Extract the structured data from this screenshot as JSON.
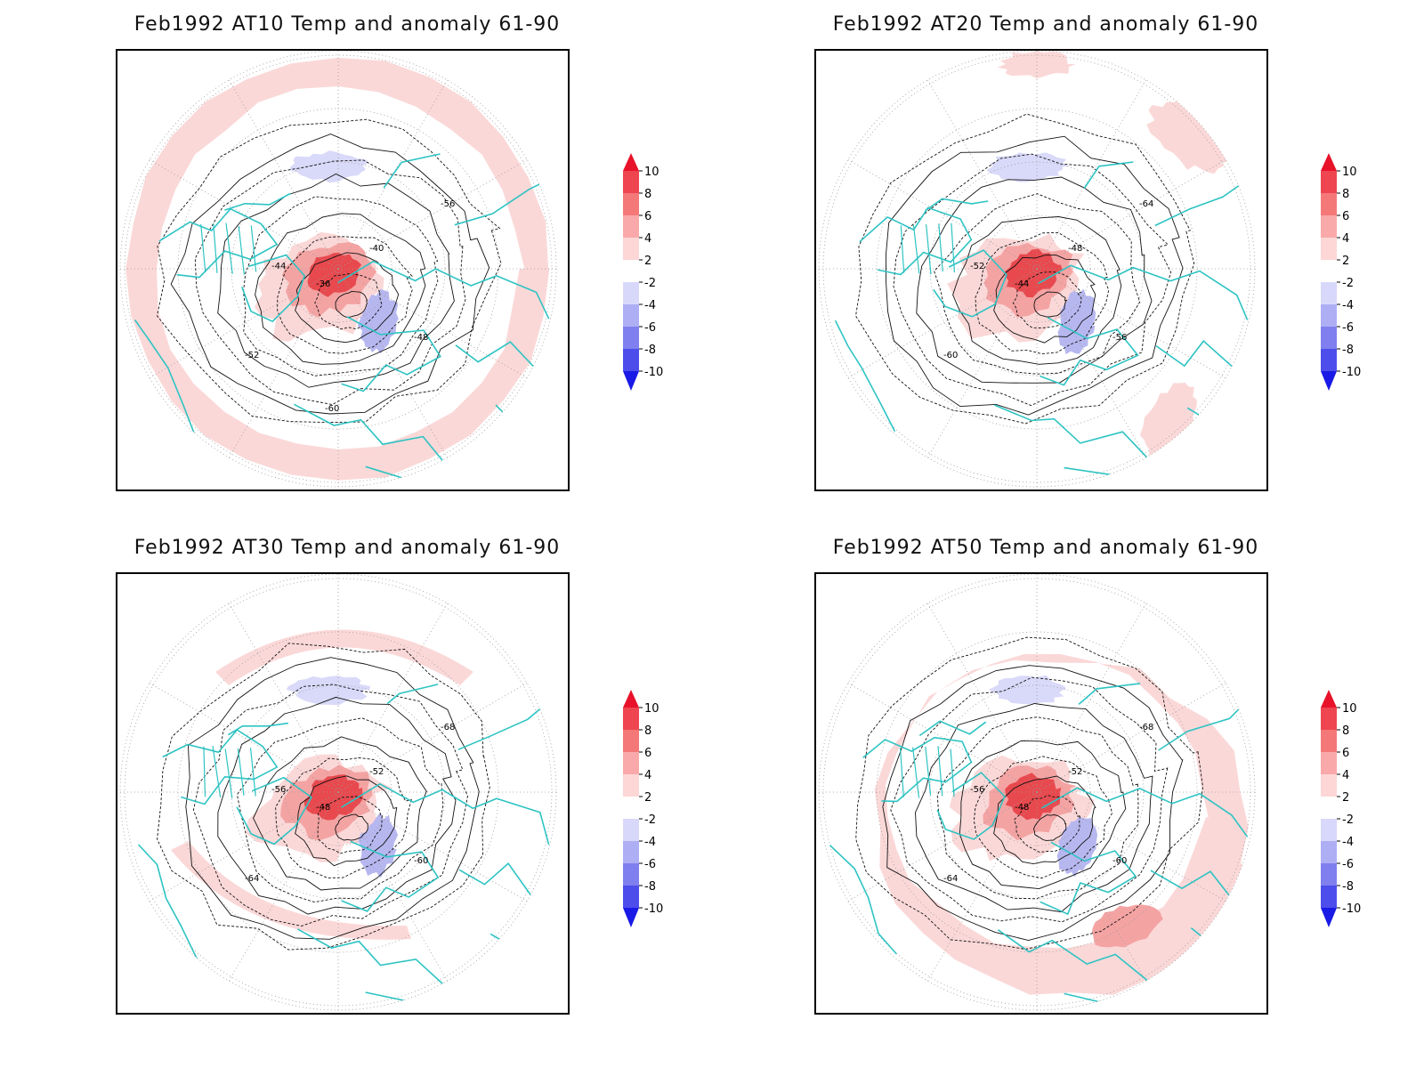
{
  "panels": [
    {
      "title": "Feb1992 AT10 Temp and anomaly 61-90",
      "contour_labels": [
        "-36",
        "-40",
        "-44",
        "-48",
        "-52",
        "-56",
        "-60"
      ],
      "warm_cores": [
        [
          "-36",
          "-44"
        ],
        [
          "-40",
          "-40"
        ]
      ]
    },
    {
      "title": "Feb1992 AT20 Temp and anomaly 61-90",
      "contour_labels": [
        "-44",
        "-48",
        "-52",
        "-56",
        "-60",
        "-64"
      ],
      "warm_cores": [
        [
          "-52",
          "-52"
        ],
        [
          "-52",
          "-52"
        ]
      ]
    },
    {
      "title": "Feb1992 AT30 Temp and anomaly 61-90",
      "contour_labels": [
        "-48",
        "-52",
        "-56",
        "-60",
        "-64",
        "-68"
      ],
      "warm_cores": [
        [
          "-56",
          "-56"
        ],
        [
          "-56",
          "-56"
        ]
      ]
    },
    {
      "title": "Feb1992 AT50 Temp and anomaly 61-90",
      "contour_labels": [
        "-48",
        "-52",
        "-56",
        "-60",
        "-64",
        "-68"
      ],
      "warm_cores": [
        [
          "-68",
          "-60"
        ],
        [
          "-64",
          "-60"
        ]
      ]
    }
  ],
  "colorbar": {
    "ticks": [
      "10",
      "8",
      "6",
      "4",
      "2",
      "-2",
      "-4",
      "-6",
      "-8",
      "-10"
    ],
    "colors": [
      "#e8122a",
      "#ee4550",
      "#f57878",
      "#f9a9a9",
      "#fdd6d6",
      "#ffffff",
      "#d8d8fb",
      "#aeaef5",
      "#7f7fef",
      "#4d4deb",
      "#1a1ae6"
    ]
  },
  "map_colors": {
    "coastline": "#2ec3c3",
    "contour": "#111111",
    "warm_light": "#fbd8d8",
    "warm_mid": "#f4a3a3",
    "warm_strong": "#e8494e",
    "cool_light": "#d9d9f9",
    "cool_mid": "#b7b7f0",
    "grid": "#9a9a9a"
  }
}
